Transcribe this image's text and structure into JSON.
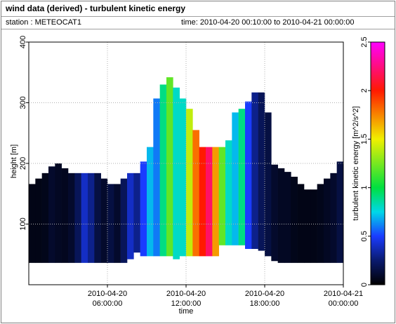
{
  "chart_data": {
    "type": "heatmap",
    "title": "wind data (derived) - turbulent kinetic energy",
    "station": "station : METEOCAT1",
    "time_range": "time: 2010-04-20 00:10:00 to 2010-04-21 00:00:00",
    "x_label": "time",
    "y_label": "height [m]",
    "colorbar_label": "turbulent kinetic energy [m^2/s^2]",
    "xlim": [
      "2010-04-20 00:00:00",
      "2010-04-21 00:00:00"
    ],
    "xticks": [
      {
        "value": "2010-04-20 06:00:00",
        "label": [
          "2010-04-20",
          "06:00:00"
        ]
      },
      {
        "value": "2010-04-20 12:00:00",
        "label": [
          "2010-04-20",
          "12:00:00"
        ]
      },
      {
        "value": "2010-04-20 18:00:00",
        "label": [
          "2010-04-20",
          "18:00:00"
        ]
      },
      {
        "value": "2010-04-21 00:00:00",
        "label": [
          "2010-04-21",
          "00:00:00"
        ]
      }
    ],
    "ylim": [
      0,
      400
    ],
    "yticks": [
      100,
      200,
      300,
      400
    ],
    "clim": [
      0,
      2.5
    ],
    "cticks": [
      0,
      0.5,
      1,
      1.5,
      2,
      2.5
    ],
    "colormap": [
      {
        "value": 0,
        "color": "#000000"
      },
      {
        "value": 0.25,
        "color": "#0a1a6e"
      },
      {
        "value": 0.5,
        "color": "#1a3cff"
      },
      {
        "value": 0.75,
        "color": "#00d8e8"
      },
      {
        "value": 1.0,
        "color": "#00e040"
      },
      {
        "value": 1.5,
        "color": "#f0f000"
      },
      {
        "value": 2.0,
        "color": "#ff1a00"
      },
      {
        "value": 2.5,
        "color": "#ff00ff"
      }
    ],
    "grid": true,
    "x": [
      "2010-04-20 00:00:00",
      "2010-04-20 00:30:00",
      "2010-04-20 01:00:00",
      "2010-04-20 01:30:00",
      "2010-04-20 02:00:00",
      "2010-04-20 02:30:00",
      "2010-04-20 03:00:00",
      "2010-04-20 03:30:00",
      "2010-04-20 04:00:00",
      "2010-04-20 04:30:00",
      "2010-04-20 05:00:00",
      "2010-04-20 05:30:00",
      "2010-04-20 06:00:00",
      "2010-04-20 06:30:00",
      "2010-04-20 07:00:00",
      "2010-04-20 07:30:00",
      "2010-04-20 08:00:00",
      "2010-04-20 08:30:00",
      "2010-04-20 09:00:00",
      "2010-04-20 09:30:00",
      "2010-04-20 10:00:00",
      "2010-04-20 10:30:00",
      "2010-04-20 11:00:00",
      "2010-04-20 11:30:00",
      "2010-04-20 12:00:00",
      "2010-04-20 12:30:00",
      "2010-04-20 13:00:00",
      "2010-04-20 13:30:00",
      "2010-04-20 14:00:00",
      "2010-04-20 14:30:00",
      "2010-04-20 15:00:00",
      "2010-04-20 15:30:00",
      "2010-04-20 16:00:00",
      "2010-04-20 16:30:00",
      "2010-04-20 17:00:00",
      "2010-04-20 17:30:00",
      "2010-04-20 18:00:00",
      "2010-04-20 18:30:00",
      "2010-04-20 19:00:00",
      "2010-04-20 19:30:00",
      "2010-04-20 20:00:00",
      "2010-04-20 20:30:00",
      "2010-04-20 21:00:00",
      "2010-04-20 21:30:00",
      "2010-04-20 22:00:00",
      "2010-04-20 22:30:00",
      "2010-04-20 23:00:00",
      "2010-04-20 23:30:00"
    ],
    "bottom": [
      36,
      36,
      36,
      36,
      36,
      36,
      36,
      36,
      36,
      36,
      36,
      36,
      36,
      36,
      36,
      42,
      53,
      47,
      47,
      47,
      47,
      47,
      42,
      47,
      47,
      47,
      47,
      47,
      47,
      65,
      65,
      65,
      65,
      59,
      59,
      56,
      47,
      39,
      36,
      36,
      36,
      36,
      36,
      36,
      36,
      36,
      36,
      36
    ],
    "top": [
      166,
      175,
      184,
      195,
      200,
      192,
      184,
      184,
      184,
      184,
      184,
      175,
      166,
      166,
      175,
      184,
      184,
      203,
      227,
      307,
      330,
      342,
      325,
      307,
      290,
      255,
      227,
      227,
      227,
      227,
      238,
      284,
      290,
      302,
      317,
      317,
      284,
      198,
      192,
      186,
      178,
      166,
      157,
      157,
      166,
      175,
      184,
      203
    ],
    "values": [
      0.05,
      0.05,
      0.06,
      0.1,
      0.08,
      0.07,
      0.1,
      0.2,
      0.4,
      0.3,
      0.15,
      0.1,
      0.15,
      0.1,
      0.2,
      0.4,
      0.3,
      0.5,
      0.7,
      0.6,
      0.9,
      1.2,
      0.8,
      0.8,
      1.4,
      1.8,
      2.0,
      2.2,
      1.7,
      1.2,
      0.8,
      0.7,
      0.9,
      0.5,
      0.3,
      0.2,
      0.15,
      0.1,
      0.08,
      0.08,
      0.06,
      0.05,
      0.05,
      0.05,
      0.06,
      0.08,
      0.1,
      0.15
    ]
  }
}
